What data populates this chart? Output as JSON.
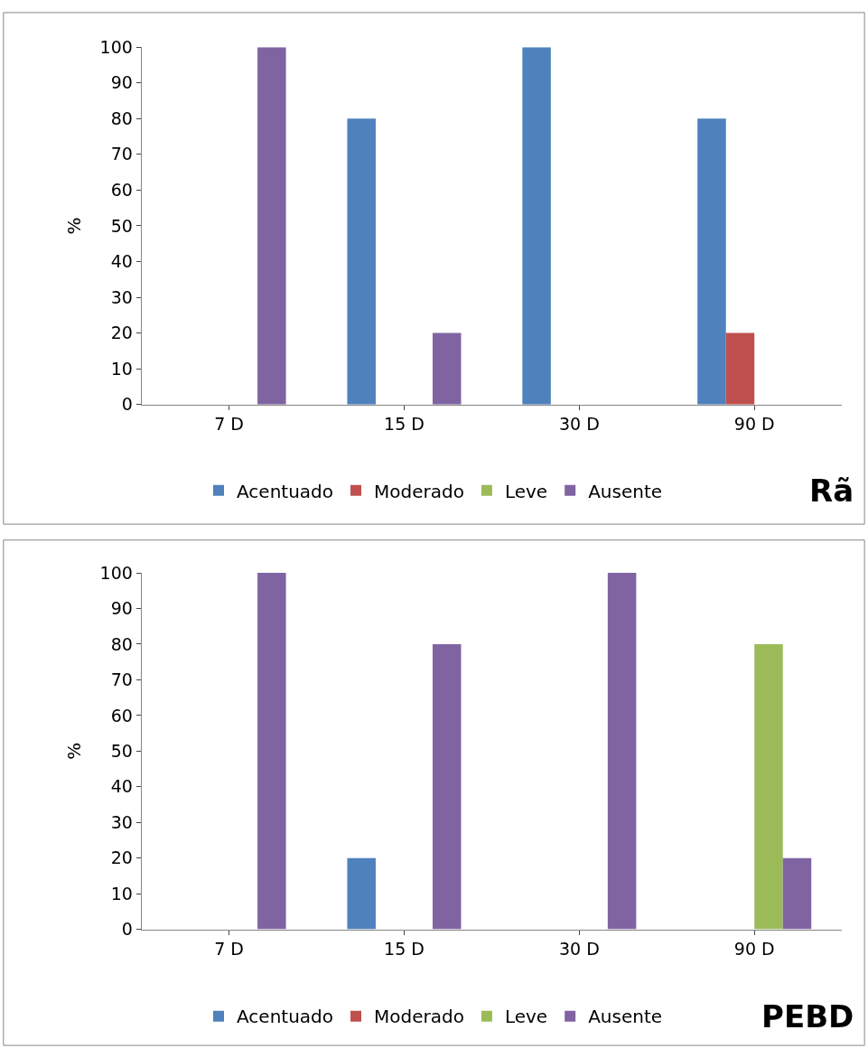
{
  "chart_data": [
    {
      "type": "bar",
      "title": "Rã",
      "ylabel": "%",
      "categories": [
        "7 D",
        "15 D",
        "30 D",
        "90 D"
      ],
      "ylim": [
        0,
        100
      ],
      "yticks": [
        0,
        10,
        20,
        30,
        40,
        50,
        60,
        70,
        80,
        90,
        100
      ],
      "grid": false,
      "legend": "bottom",
      "series": [
        {
          "name": "Acentuado",
          "color": "#4f81bd",
          "values": [
            0,
            80,
            100,
            80
          ]
        },
        {
          "name": "Moderado",
          "color": "#c0504d",
          "values": [
            0,
            0,
            0,
            20
          ]
        },
        {
          "name": "Leve",
          "color": "#9bbb59",
          "values": [
            0,
            0,
            0,
            0
          ]
        },
        {
          "name": "Ausente",
          "color": "#8064a2",
          "values": [
            100,
            20,
            0,
            0
          ]
        }
      ]
    },
    {
      "type": "bar",
      "title": "PEBD",
      "ylabel": "%",
      "categories": [
        "7 D",
        "15 D",
        "30 D",
        "90 D"
      ],
      "ylim": [
        0,
        100
      ],
      "yticks": [
        0,
        10,
        20,
        30,
        40,
        50,
        60,
        70,
        80,
        90,
        100
      ],
      "grid": false,
      "legend": "bottom",
      "series": [
        {
          "name": "Acentuado",
          "color": "#4f81bd",
          "values": [
            0,
            20,
            0,
            0
          ]
        },
        {
          "name": "Moderado",
          "color": "#c0504d",
          "values": [
            0,
            0,
            0,
            0
          ]
        },
        {
          "name": "Leve",
          "color": "#9bbb59",
          "values": [
            0,
            0,
            0,
            80
          ]
        },
        {
          "name": "Ausente",
          "color": "#8064a2",
          "values": [
            100,
            80,
            100,
            20
          ]
        }
      ]
    }
  ]
}
